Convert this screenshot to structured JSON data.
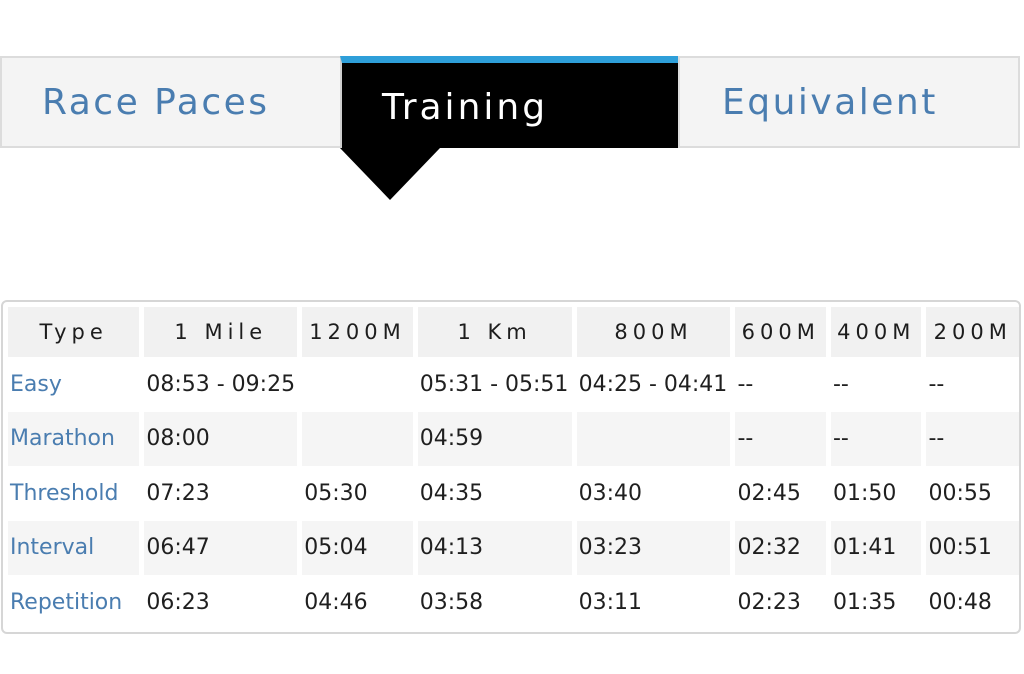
{
  "tabs": [
    {
      "label": "Race Paces",
      "active": false
    },
    {
      "label": "Training",
      "active": true
    },
    {
      "label": "Equivalent",
      "active": false
    }
  ],
  "colors": {
    "accent": "#2e9fd9",
    "link": "#4a7db0",
    "active_tab_bg": "#000000"
  },
  "table": {
    "headers": [
      "Type",
      "1 Mile",
      "1200M",
      "1 Km",
      "800M",
      "600M",
      "400M",
      "200M"
    ],
    "rows": [
      {
        "type": "Easy",
        "cells": [
          "08:53 - 09:25",
          "",
          "05:31 - 05:51",
          "04:25 - 04:41",
          "--",
          "--",
          "--"
        ]
      },
      {
        "type": "Marathon",
        "cells": [
          "08:00",
          "",
          "04:59",
          "",
          "--",
          "--",
          "--"
        ]
      },
      {
        "type": "Threshold",
        "cells": [
          "07:23",
          "05:30",
          "04:35",
          "03:40",
          "02:45",
          "01:50",
          "00:55"
        ]
      },
      {
        "type": "Interval",
        "cells": [
          "06:47",
          "05:04",
          "04:13",
          "03:23",
          "02:32",
          "01:41",
          "00:51"
        ]
      },
      {
        "type": "Repetition",
        "cells": [
          "06:23",
          "04:46",
          "03:58",
          "03:11",
          "02:23",
          "01:35",
          "00:48"
        ]
      }
    ]
  }
}
